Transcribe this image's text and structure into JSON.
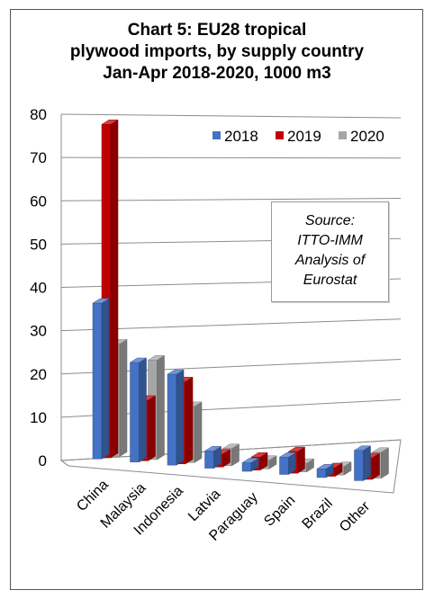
{
  "title_lines": [
    "Chart 5: EU28 tropical",
    "plywood imports, by supply country",
    "Jan-Apr 2018-2020, 1000 m3"
  ],
  "source_lines": [
    "Source:",
    "ITTO-IMM",
    "Analysis of",
    "Eurostat"
  ],
  "chart_data": {
    "type": "bar",
    "title": "Chart 5: EU28 tropical plywood imports, by supply country Jan-Apr 2018-2020, 1000 m3",
    "categories": [
      "China",
      "Malaysia",
      "Indonesia",
      "Latvia",
      "Paraguay",
      "Spain",
      "Brazil",
      "Other"
    ],
    "series": [
      {
        "name": "2018",
        "values": [
          36,
          23,
          21,
          4,
          2,
          4,
          2,
          7
        ],
        "color": "#4472C4"
      },
      {
        "name": "2019",
        "values": [
          77,
          14,
          19,
          3,
          3,
          5,
          2,
          5
        ],
        "color": "#C00000"
      },
      {
        "name": "2020",
        "values": [
          26,
          23,
          13,
          4,
          2,
          2,
          2,
          6
        ],
        "color": "#A6A6A6"
      }
    ],
    "yticks": [
      0,
      10,
      20,
      30,
      40,
      50,
      60,
      70,
      80
    ],
    "ylim": [
      0,
      80
    ],
    "grid": true,
    "legend_position": "top-right",
    "three_d": true
  }
}
